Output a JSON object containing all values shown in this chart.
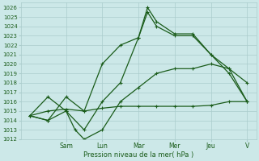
{
  "title": "",
  "xlabel": "Pression niveau de la mer( hPa )",
  "ylabel": "",
  "bg_color": "#cce8e8",
  "grid_color": "#aacccc",
  "line_color": "#1a5c1a",
  "ylim": [
    1012,
    1026.5
  ],
  "xlim": [
    0,
    13
  ],
  "yticks": [
    1012,
    1013,
    1014,
    1015,
    1016,
    1017,
    1018,
    1019,
    1020,
    1021,
    1022,
    1023,
    1024,
    1025,
    1026
  ],
  "day_labels": [
    "Sam",
    "Lun",
    "Mar",
    "Mer",
    "Jeu",
    "V"
  ],
  "day_positions": [
    2.5,
    4.5,
    6.5,
    8.5,
    10.5,
    12.5
  ],
  "lines": [
    {
      "x": [
        0.5,
        1.5,
        2.5,
        3.5,
        4.5,
        5.5,
        6.5,
        7.0,
        7.5,
        8.5,
        9.5,
        10.5,
        11.5,
        12.5
      ],
      "y": [
        1014.5,
        1014.0,
        1016.5,
        1015.0,
        1020.0,
        1022.0,
        1022.8,
        1026.0,
        1024.5,
        1023.2,
        1023.2,
        1021.0,
        1019.0,
        1016.0
      ]
    },
    {
      "x": [
        0.5,
        1.5,
        2.5,
        3.5,
        4.5,
        5.5,
        6.5,
        7.0,
        7.5,
        8.5,
        9.5,
        10.5,
        11.5,
        12.5
      ],
      "y": [
        1014.5,
        1014.0,
        1015.0,
        1013.0,
        1016.0,
        1018.0,
        1022.8,
        1025.5,
        1024.0,
        1023.0,
        1023.0,
        1021.0,
        1019.5,
        1016.0
      ]
    },
    {
      "x": [
        0.5,
        1.5,
        2.5,
        3.0,
        3.5,
        4.5,
        5.5,
        6.5,
        7.5,
        8.5,
        9.5,
        10.5,
        11.5,
        12.5
      ],
      "y": [
        1014.5,
        1016.5,
        1015.0,
        1013.0,
        1012.0,
        1013.0,
        1016.0,
        1017.5,
        1019.0,
        1019.5,
        1019.5,
        1020.0,
        1019.5,
        1018.0
      ]
    },
    {
      "x": [
        0.5,
        1.5,
        2.5,
        3.5,
        4.5,
        5.5,
        6.5,
        7.5,
        8.5,
        9.5,
        10.5,
        11.5,
        12.5
      ],
      "y": [
        1014.5,
        1015.0,
        1015.2,
        1015.0,
        1015.3,
        1015.5,
        1015.5,
        1015.5,
        1015.5,
        1015.5,
        1015.6,
        1016.0,
        1016.0
      ]
    }
  ]
}
